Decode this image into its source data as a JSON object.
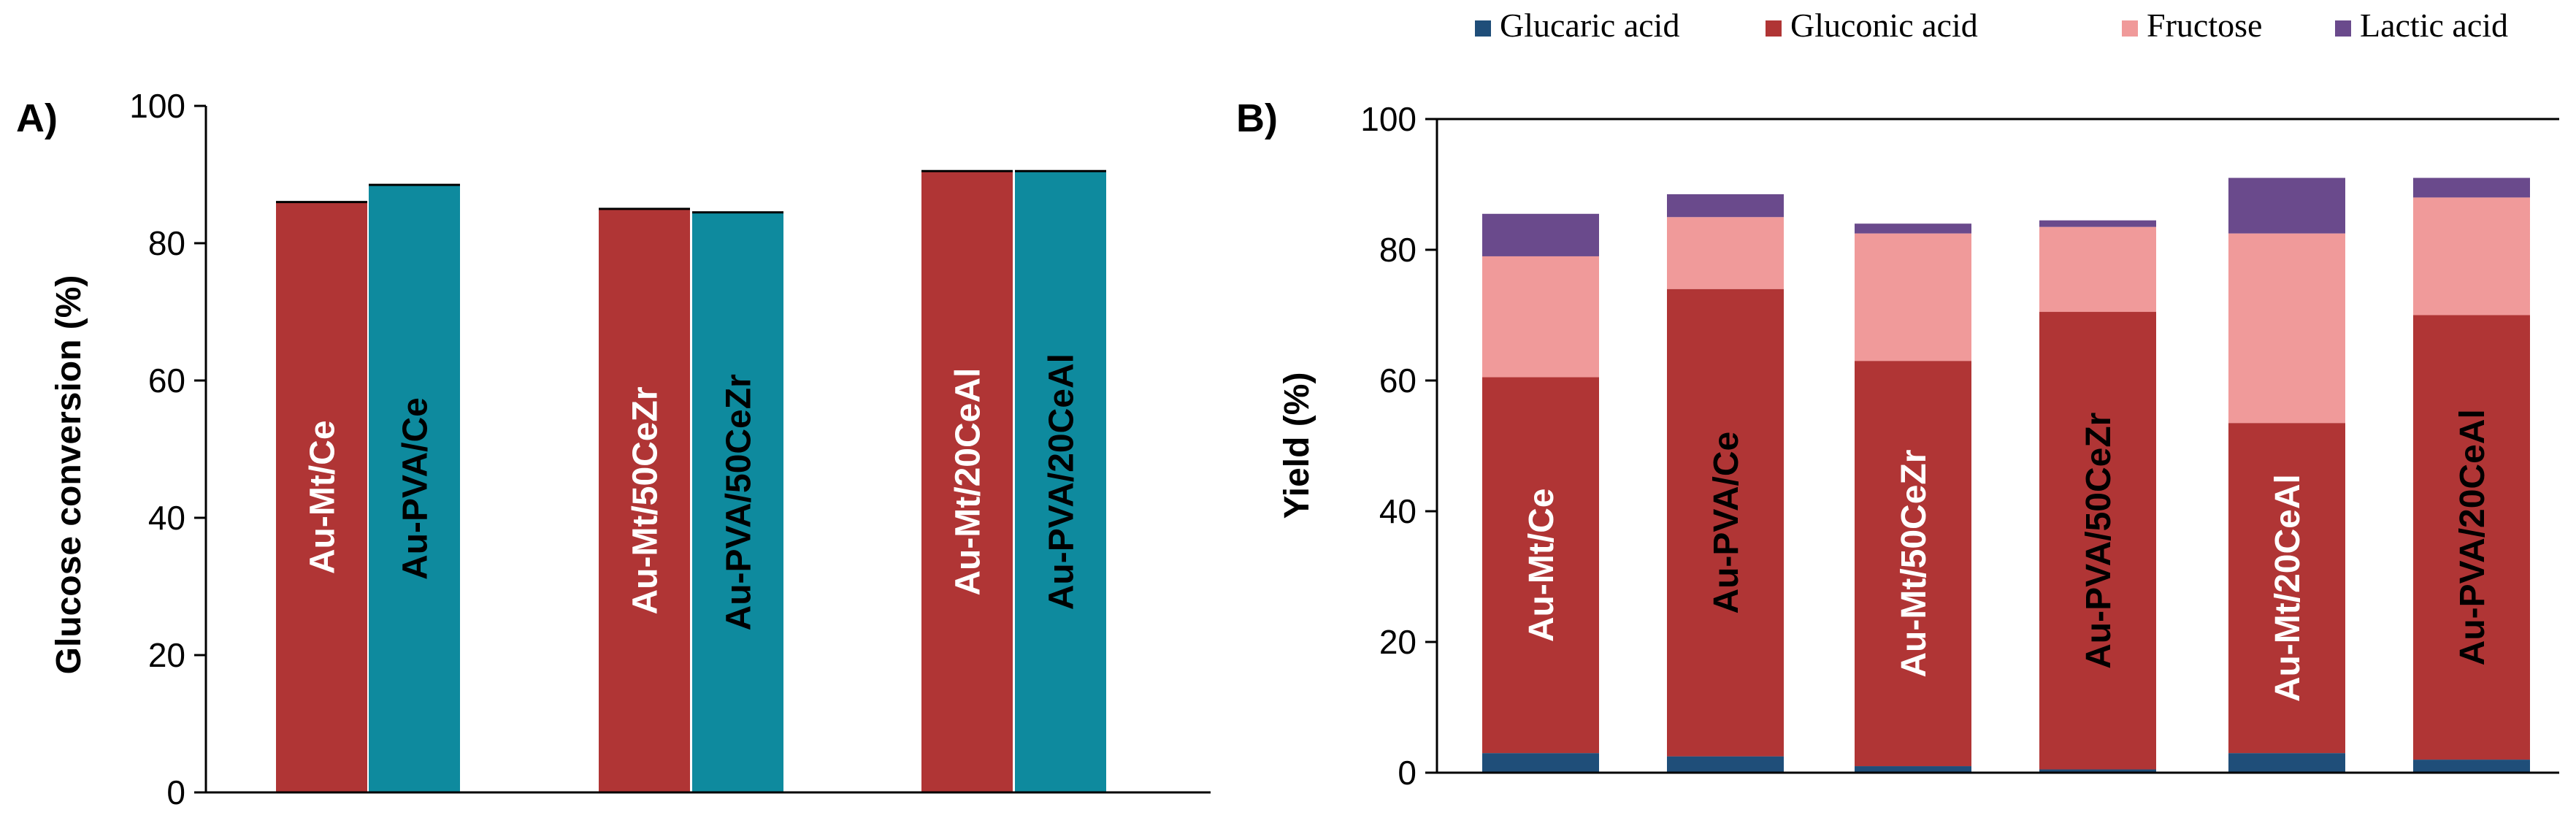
{
  "chart_data": [
    {
      "type": "bar",
      "panel_label": "A)",
      "title": "",
      "xlabel": "",
      "ylabel": "Glucose conversion (%)",
      "ylim": [
        0,
        100
      ],
      "yticks": [
        "0",
        "20",
        "40",
        "60",
        "80",
        "100"
      ],
      "grid": false,
      "bars": [
        {
          "label": "Au-Mt/Ce",
          "value": 86,
          "color": "#B03535",
          "label_color": "#ffffff"
        },
        {
          "label": "Au-PVA/Ce",
          "value": 88.5,
          "color": "#0E8A9E",
          "label_color": "#000000"
        },
        {
          "label": "Au-Mt/50CeZr",
          "value": 85,
          "color": "#B03535",
          "label_color": "#ffffff"
        },
        {
          "label": "Au-PVA/50CeZr",
          "value": 84.5,
          "color": "#0E8A9E",
          "label_color": "#000000"
        },
        {
          "label": "Au-Mt/20CeAl",
          "value": 90.5,
          "color": "#B03535",
          "label_color": "#ffffff"
        },
        {
          "label": "Au-PVA/20CeAl",
          "value": 90.5,
          "color": "#0E8A9E",
          "label_color": "#000000"
        }
      ]
    },
    {
      "type": "bar",
      "stacked": true,
      "panel_label": "B)",
      "title": "",
      "xlabel": "",
      "ylabel": "Yield (%)",
      "ylim": [
        0,
        100
      ],
      "yticks": [
        "0",
        "20",
        "40",
        "60",
        "80",
        "100"
      ],
      "grid": false,
      "legend_position": "top",
      "categories": [
        "Au-Mt/Ce",
        "Au-PVA/Ce",
        "Au-Mt/50CeZr",
        "Au-PVA/50CeZr",
        "Au-Mt/20CeAl",
        "Au-PVA/20CeAl"
      ],
      "category_label_colors": [
        "#ffffff",
        "#000000",
        "#ffffff",
        "#000000",
        "#ffffff",
        "#000000"
      ],
      "series": [
        {
          "name": "Glucaric acid",
          "color": "#1F4E79",
          "values": [
            3,
            2.5,
            1,
            0.5,
            3,
            2
          ]
        },
        {
          "name": "Gluconic acid",
          "color": "#B03535",
          "values": [
            57.5,
            71.5,
            62,
            70,
            50.5,
            68
          ]
        },
        {
          "name": "Fructose",
          "color": "#F09A9A",
          "values": [
            18.5,
            11,
            19.5,
            13,
            29,
            18
          ]
        },
        {
          "name": "Lactic acid",
          "color": "#6A4A8C",
          "values": [
            6.5,
            3.5,
            1.5,
            1,
            8.5,
            3
          ]
        }
      ]
    }
  ]
}
